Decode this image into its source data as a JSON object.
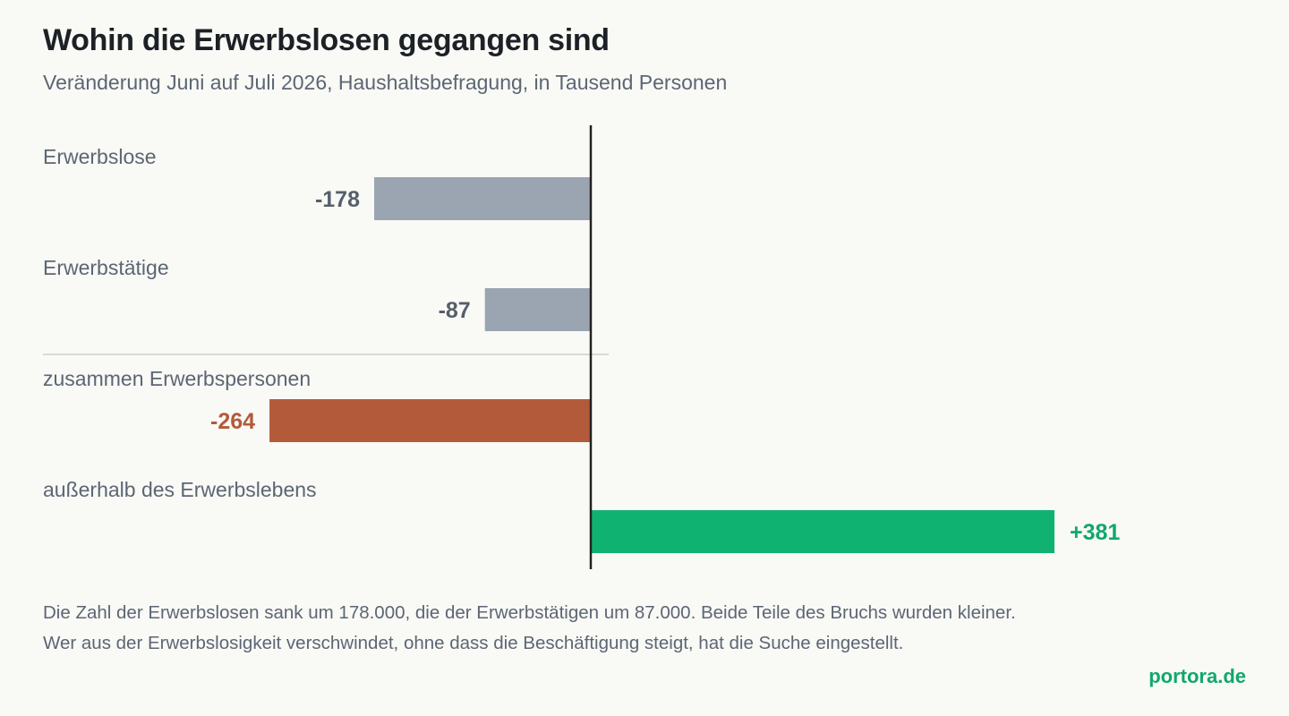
{
  "header": {
    "title": "Wohin die Erwerbslosen gegangen sind",
    "subtitle": "Veränderung Juni auf Juli 2026, Haushaltsbefragung, in Tausend Personen"
  },
  "chart_data": {
    "type": "bar",
    "orientation": "horizontal",
    "categories": [
      "Erwerbslose",
      "Erwerbstätige",
      "zusammen Erwerbspersonen",
      "außerhalb des Erwerbslebens"
    ],
    "values": [
      -178,
      -87,
      -264,
      381
    ],
    "value_labels": [
      "-178",
      "-87",
      "-264",
      "+381"
    ],
    "colors": [
      "#9aa5b1",
      "#9aa5b1",
      "#b35a3a",
      "#10b272"
    ],
    "label_colors": [
      "#555f6b",
      "#555f6b",
      "#b35a3a",
      "#10a86a"
    ],
    "grid": false,
    "zero_line": true,
    "separator_after_index": 1
  },
  "footnote": {
    "line1": "Die Zahl der Erwerbslosen sank um 178.000, die der Erwerbstätigen um 87.000. Beide Teile des Bruchs wurden kleiner.",
    "line2": "Wer aus der Erwerbslosigkeit verschwindet, ohne dass die Beschäftigung steigt, hat die Suche eingestellt."
  },
  "brand": "portora.de"
}
